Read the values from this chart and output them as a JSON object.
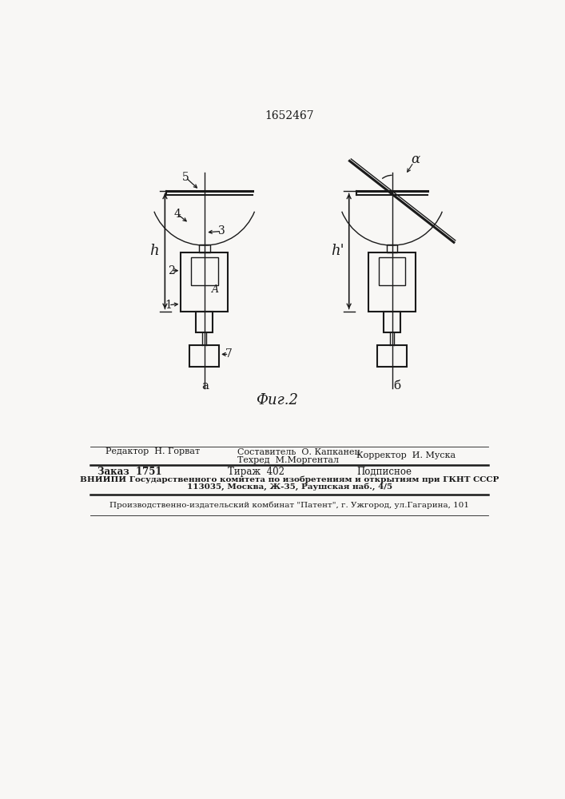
{
  "patent_number": "1652467",
  "fig_caption": "Фиг.2",
  "bg_color": "#f8f7f5",
  "line_color": "#1a1a1a",
  "editor_label": "Редактор  Н. Горват",
  "compiler_label": "Составитель  О. Капканец",
  "techred_label": "Техред  М.Моргентал",
  "corrector_label": "Корректор  И. Муска",
  "order_text": "Заказ  1751",
  "tirazh_text": "Тираж  402",
  "podpisnoe_text": "Подписное",
  "vnipi_line": "ВНИИПИ Государственного комитета по изобретениям и открытиям при ГКНТ СССР",
  "address_line": "113035, Москва, Ж-35, Раушская наб., 4/5",
  "factory_line": "Производственно-издательский комбинат \"Патент\", г. Ужгород, ул.Гагарина, 101"
}
